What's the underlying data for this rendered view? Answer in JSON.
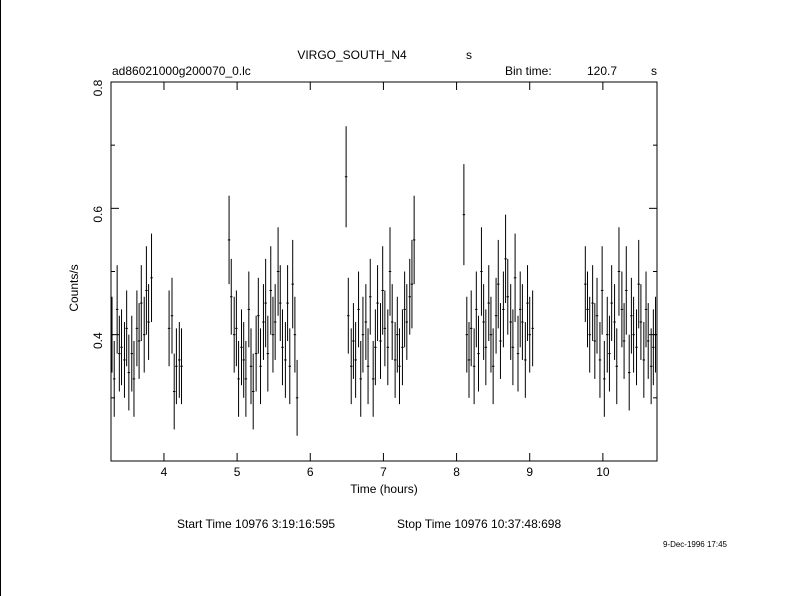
{
  "chart_data": {
    "type": "errorbar",
    "title": "VIRGO_SOUTH_N4",
    "title_unit": "s",
    "file_label": "ad86021000g200070_0.lc",
    "bin_time_label": "Bin time:",
    "bin_time": 120.7,
    "bin_time_unit": "s",
    "x_label": "Time (hours)",
    "y_label": "Counts/s",
    "start_time": "Start Time 10976  3:19:16:595",
    "stop_time": "Stop Time 10976 10:37:48:698",
    "date": "9-Dec-1996 17:45",
    "color": "#000000",
    "xlim": [
      3.276,
      10.74
    ],
    "xticks": [
      4,
      5,
      6,
      7,
      8,
      9,
      10
    ],
    "ylim": [
      0.2,
      0.8
    ],
    "yticks": [
      0.4,
      0.6,
      0.8
    ],
    "yminorticks": [
      0.3,
      0.5,
      0.7
    ],
    "x": [
      3.29,
      3.32,
      3.36,
      3.39,
      3.42,
      3.46,
      3.49,
      3.52,
      3.56,
      3.59,
      3.63,
      3.66,
      3.69,
      3.73,
      3.76,
      3.79,
      3.83,
      4.07,
      4.11,
      4.14,
      4.17,
      4.21,
      4.24,
      4.89,
      4.92,
      4.96,
      4.99,
      5.02,
      5.06,
      5.09,
      5.12,
      5.16,
      5.19,
      5.22,
      5.26,
      5.29,
      5.32,
      5.36,
      5.39,
      5.42,
      5.46,
      5.49,
      5.52,
      5.56,
      5.59,
      5.62,
      5.66,
      5.69,
      5.72,
      5.76,
      5.79,
      5.82,
      6.49,
      6.52,
      6.56,
      6.59,
      6.62,
      6.66,
      6.69,
      6.72,
      6.76,
      6.79,
      6.82,
      6.86,
      6.89,
      6.92,
      6.96,
      6.99,
      7.02,
      7.06,
      7.09,
      7.12,
      7.16,
      7.19,
      7.22,
      7.26,
      7.29,
      7.32,
      7.36,
      7.39,
      7.42,
      8.1,
      8.14,
      8.17,
      8.2,
      8.24,
      8.27,
      8.3,
      8.34,
      8.37,
      8.4,
      8.44,
      8.47,
      8.5,
      8.54,
      8.57,
      8.6,
      8.64,
      8.67,
      8.7,
      8.74,
      8.77,
      8.8,
      8.84,
      8.87,
      8.9,
      8.94,
      8.97,
      9.0,
      9.04,
      9.76,
      9.79,
      9.82,
      9.86,
      9.89,
      9.92,
      9.96,
      9.99,
      10.02,
      10.06,
      10.09,
      10.12,
      10.16,
      10.19,
      10.22,
      10.26,
      10.29,
      10.32,
      10.36,
      10.39,
      10.42,
      10.46,
      10.49,
      10.52,
      10.56,
      10.59,
      10.62,
      10.66,
      10.69,
      10.72
    ],
    "values": [
      0.4,
      0.33,
      0.44,
      0.37,
      0.38,
      0.36,
      0.41,
      0.34,
      0.37,
      0.33,
      0.41,
      0.39,
      0.45,
      0.4,
      0.47,
      0.42,
      0.49,
      0.41,
      0.43,
      0.31,
      0.35,
      0.36,
      0.35,
      0.55,
      0.46,
      0.4,
      0.41,
      0.33,
      0.38,
      0.36,
      0.33,
      0.44,
      0.35,
      0.31,
      0.37,
      0.43,
      0.35,
      0.42,
      0.45,
      0.37,
      0.47,
      0.4,
      0.42,
      0.5,
      0.45,
      0.38,
      0.36,
      0.45,
      0.35,
      0.48,
      0.4,
      0.3,
      0.65,
      0.43,
      0.35,
      0.39,
      0.36,
      0.44,
      0.33,
      0.4,
      0.42,
      0.35,
      0.46,
      0.33,
      0.38,
      0.45,
      0.39,
      0.47,
      0.41,
      0.38,
      0.5,
      0.42,
      0.36,
      0.4,
      0.35,
      0.38,
      0.44,
      0.42,
      0.46,
      0.48,
      0.55,
      0.59,
      0.4,
      0.36,
      0.41,
      0.35,
      0.44,
      0.37,
      0.5,
      0.42,
      0.38,
      0.45,
      0.4,
      0.35,
      0.43,
      0.48,
      0.39,
      0.44,
      0.52,
      0.46,
      0.42,
      0.38,
      0.49,
      0.37,
      0.44,
      0.42,
      0.36,
      0.45,
      0.4,
      0.41,
      0.48,
      0.44,
      0.4,
      0.45,
      0.39,
      0.43,
      0.36,
      0.47,
      0.33,
      0.4,
      0.37,
      0.45,
      0.42,
      0.35,
      0.5,
      0.44,
      0.39,
      0.47,
      0.34,
      0.43,
      0.4,
      0.38,
      0.48,
      0.42,
      0.36,
      0.44,
      0.39,
      0.35,
      0.38,
      0.4
    ],
    "errors": [
      0.06,
      0.06,
      0.07,
      0.06,
      0.06,
      0.06,
      0.06,
      0.06,
      0.06,
      0.06,
      0.06,
      0.06,
      0.06,
      0.06,
      0.07,
      0.06,
      0.07,
      0.06,
      0.06,
      0.06,
      0.06,
      0.06,
      0.06,
      0.07,
      0.06,
      0.06,
      0.06,
      0.06,
      0.06,
      0.06,
      0.06,
      0.06,
      0.06,
      0.06,
      0.06,
      0.06,
      0.06,
      0.06,
      0.07,
      0.06,
      0.07,
      0.06,
      0.06,
      0.07,
      0.06,
      0.06,
      0.06,
      0.06,
      0.06,
      0.07,
      0.06,
      0.06,
      0.08,
      0.06,
      0.06,
      0.06,
      0.06,
      0.06,
      0.06,
      0.06,
      0.06,
      0.06,
      0.06,
      0.06,
      0.06,
      0.06,
      0.06,
      0.07,
      0.06,
      0.06,
      0.07,
      0.06,
      0.06,
      0.06,
      0.06,
      0.06,
      0.06,
      0.06,
      0.06,
      0.07,
      0.07,
      0.08,
      0.06,
      0.06,
      0.06,
      0.06,
      0.06,
      0.06,
      0.07,
      0.06,
      0.06,
      0.06,
      0.06,
      0.06,
      0.06,
      0.07,
      0.06,
      0.06,
      0.07,
      0.06,
      0.06,
      0.06,
      0.07,
      0.06,
      0.06,
      0.06,
      0.06,
      0.06,
      0.06,
      0.06,
      0.06,
      0.06,
      0.06,
      0.06,
      0.06,
      0.06,
      0.06,
      0.07,
      0.06,
      0.06,
      0.06,
      0.06,
      0.06,
      0.06,
      0.07,
      0.06,
      0.06,
      0.07,
      0.06,
      0.06,
      0.06,
      0.06,
      0.07,
      0.06,
      0.06,
      0.06,
      0.06,
      0.06,
      0.06,
      0.06
    ]
  }
}
